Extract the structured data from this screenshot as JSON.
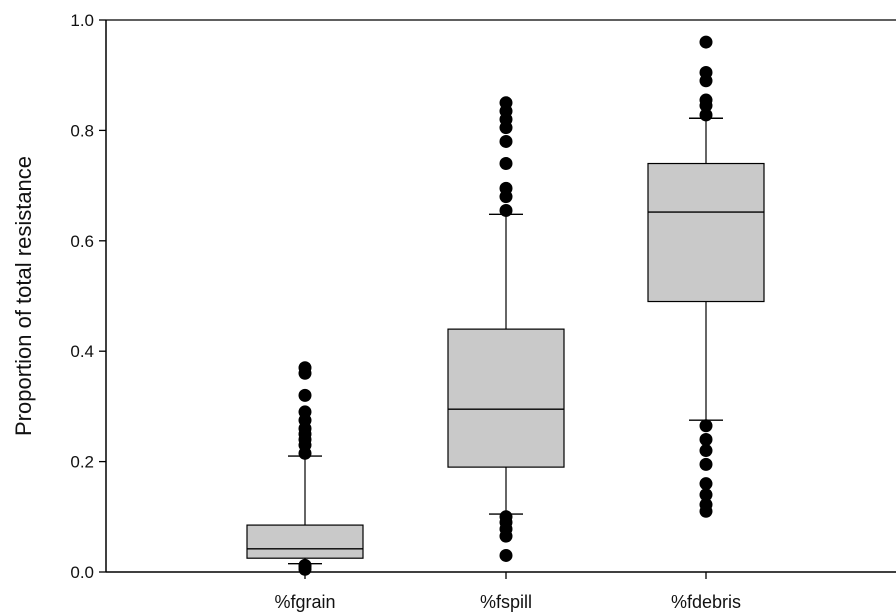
{
  "chart_data": {
    "type": "box",
    "title": "",
    "xlabel": "",
    "ylabel": "Proportion of total resistance",
    "ylim": [
      0.0,
      1.0
    ],
    "yticks": [
      "0.0",
      "0.2",
      "0.4",
      "0.6",
      "0.8",
      "1.0"
    ],
    "categories": [
      "%fgrain",
      "%fspill",
      "%fdebris"
    ],
    "grid": false,
    "box_color": "#c9c9c9",
    "outlier_color": "#000000",
    "boxes": [
      {
        "name": "%fgrain",
        "whisker_low": 0.015,
        "q1": 0.025,
        "median": 0.042,
        "q3": 0.085,
        "whisker_high": 0.21,
        "outliers": [
          0.005,
          0.01,
          0.012,
          0.215,
          0.23,
          0.24,
          0.25,
          0.26,
          0.275,
          0.29,
          0.32,
          0.36,
          0.37
        ]
      },
      {
        "name": "%fspill",
        "whisker_low": 0.105,
        "q1": 0.19,
        "median": 0.295,
        "q3": 0.44,
        "whisker_high": 0.648,
        "outliers": [
          0.03,
          0.065,
          0.078,
          0.09,
          0.1,
          0.655,
          0.68,
          0.695,
          0.74,
          0.78,
          0.805,
          0.82,
          0.835,
          0.85
        ]
      },
      {
        "name": "%fdebris",
        "whisker_low": 0.275,
        "q1": 0.49,
        "median": 0.652,
        "q3": 0.74,
        "whisker_high": 0.822,
        "outliers": [
          0.11,
          0.122,
          0.14,
          0.16,
          0.195,
          0.22,
          0.24,
          0.265,
          0.828,
          0.845,
          0.855,
          0.89,
          0.905,
          0.96
        ]
      }
    ]
  }
}
